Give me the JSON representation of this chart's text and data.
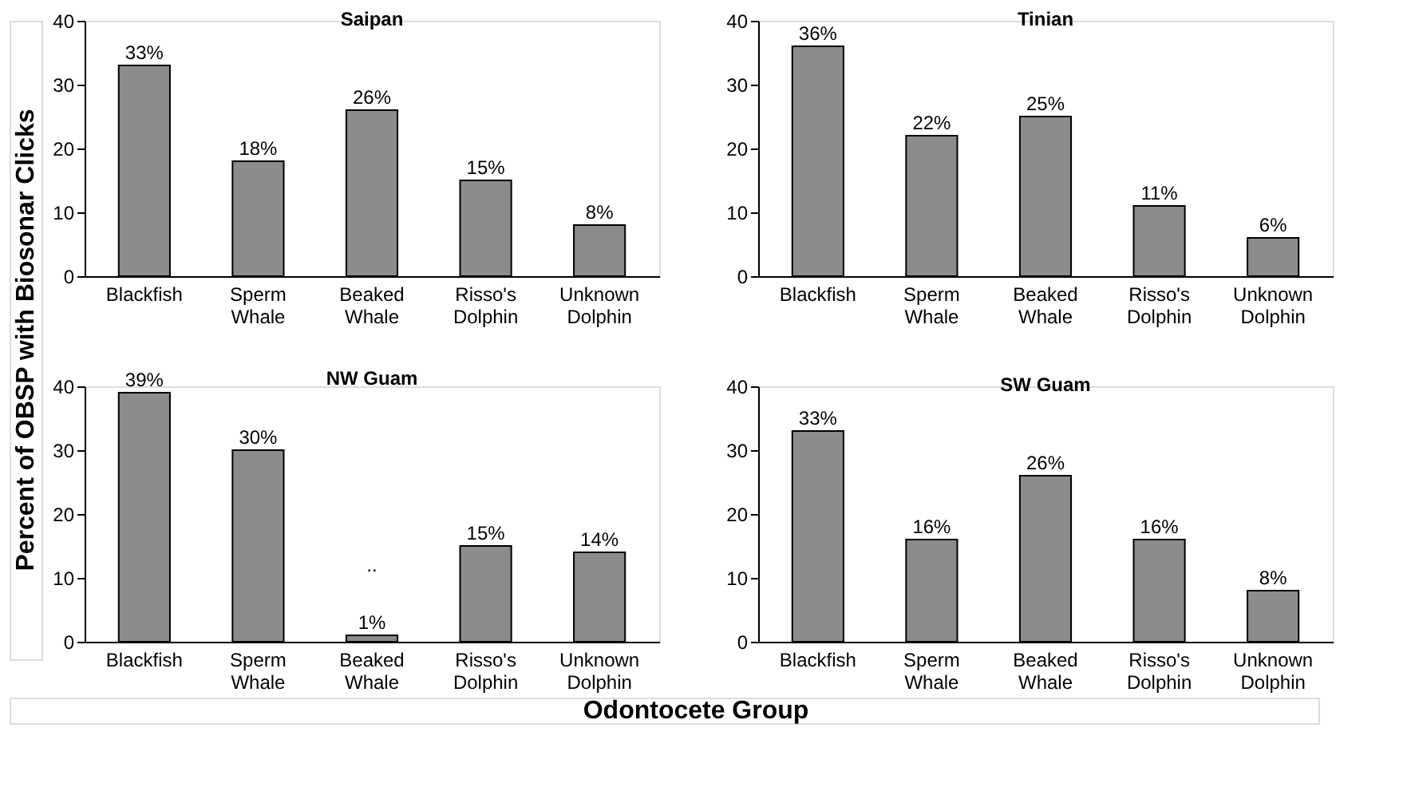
{
  "chart_data": [
    {
      "type": "bar",
      "title": "Saipan",
      "ylabel": "Percent of OBSP with Biosonar Clicks",
      "xlabel": "Odontocete Group",
      "categories": [
        "Blackfish",
        "Sperm Whale",
        "Beaked Whale",
        "Risso's Dolphin",
        "Unknown Dolphin"
      ],
      "values": [
        33,
        18,
        26,
        15,
        8
      ],
      "value_labels": [
        "33%",
        "18%",
        "26%",
        "15%",
        "8%"
      ],
      "color": "#8c8c8c",
      "ylim": [
        0,
        40
      ],
      "yticks": [
        0,
        10,
        20,
        30,
        40
      ],
      "grid": false
    },
    {
      "type": "bar",
      "title": "Tinian",
      "categories": [
        "Blackfish",
        "Sperm Whale",
        "Beaked Whale",
        "Risso's Dolphin",
        "Unknown Dolphin"
      ],
      "values": [
        36,
        22,
        25,
        11,
        6
      ],
      "value_labels": [
        "36%",
        "22%",
        "25%",
        "11%",
        "6%"
      ],
      "color": "#8c8c8c",
      "ylim": [
        0,
        40
      ],
      "yticks": [
        0,
        10,
        20,
        30,
        40
      ],
      "grid": false
    },
    {
      "type": "bar",
      "title": "NW Guam",
      "categories": [
        "Blackfish",
        "Sperm Whale",
        "Beaked Whale",
        "Risso's Dolphin",
        "Unknown Dolphin"
      ],
      "values": [
        39,
        30,
        1,
        15,
        14
      ],
      "value_labels": [
        "39%",
        "30%",
        "1%",
        "15%",
        "14%"
      ],
      "color": "#8c8c8c",
      "ylim": [
        0,
        40
      ],
      "yticks": [
        0,
        10,
        20,
        30,
        40
      ],
      "grid": false,
      "annotations": [
        ".."
      ]
    },
    {
      "type": "bar",
      "title": "SW Guam",
      "categories": [
        "Blackfish",
        "Sperm Whale",
        "Beaked Whale",
        "Risso's Dolphin",
        "Unknown Dolphin"
      ],
      "values": [
        33,
        16,
        26,
        16,
        8
      ],
      "value_labels": [
        "33%",
        "16%",
        "26%",
        "16%",
        "8%"
      ],
      "color": "#8c8c8c",
      "ylim": [
        0,
        40
      ],
      "yticks": [
        0,
        10,
        20,
        30,
        40
      ],
      "grid": false
    }
  ]
}
